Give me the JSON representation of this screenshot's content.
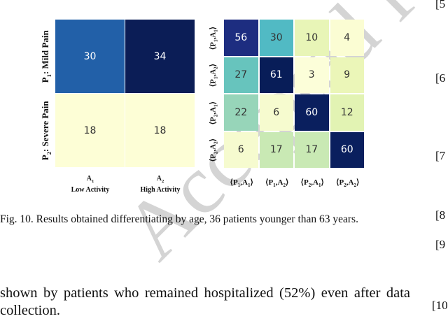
{
  "watermark": "Accepted for Publication",
  "chart_data": [
    {
      "type": "heatmap",
      "colormap": "YlGnBu",
      "row_labels": [
        "P1: Mild Pain",
        "P2: Severe Pain"
      ],
      "row_labels_display": [
        {
          "main": "P",
          "sub": "1",
          "rest": ": Mild Pain"
        },
        {
          "main": "P",
          "sub": "2",
          "rest": ": Severe Pain"
        }
      ],
      "col_labels": [
        {
          "main": "A",
          "sub": "1",
          "line2": "Low Activity"
        },
        {
          "main": "A",
          "sub": "2",
          "line2": "High Activity"
        }
      ],
      "values": [
        [
          30,
          34
        ],
        [
          18,
          18
        ]
      ],
      "colors": [
        [
          "#2260a8",
          "#0b1d56"
        ],
        [
          "#fdfed6",
          "#fdfed6"
        ]
      ]
    },
    {
      "type": "heatmap",
      "colormap": "YlGnBu",
      "labels": [
        "⟨P1,A1⟩",
        "⟨P1,A2⟩",
        "⟨P2,A1⟩",
        "⟨P2,A2⟩"
      ],
      "labels_display": [
        [
          "1",
          "1"
        ],
        [
          "1",
          "2"
        ],
        [
          "2",
          "1"
        ],
        [
          "2",
          "2"
        ]
      ],
      "values": [
        [
          56,
          30,
          10,
          4
        ],
        [
          27,
          61,
          3,
          9
        ],
        [
          22,
          6,
          60,
          12
        ],
        [
          6,
          17,
          17,
          60
        ]
      ],
      "colors": [
        [
          "#1d2d80",
          "#51bac4",
          "#e8f5b7",
          "#fbfdd3"
        ],
        [
          "#67c4bd",
          "#081d58",
          "#fcfed9",
          "#ebf6b8"
        ],
        [
          "#97d5b9",
          "#f6fbcf",
          "#0a1f5e",
          "#e2f3b3"
        ],
        [
          "#f6fbcf",
          "#c9e9b4",
          "#c9e9b4",
          "#0a1f5e"
        ]
      ]
    }
  ],
  "caption": "Fig. 10.   Results obtained differentiating by age, 36 patients younger than 63 years.",
  "body_text": "shown by patients who remained hospitalized (52%) even after data collection.",
  "references": [
    "[5",
    "[6",
    "[7",
    "[8",
    "[9",
    "[10"
  ]
}
